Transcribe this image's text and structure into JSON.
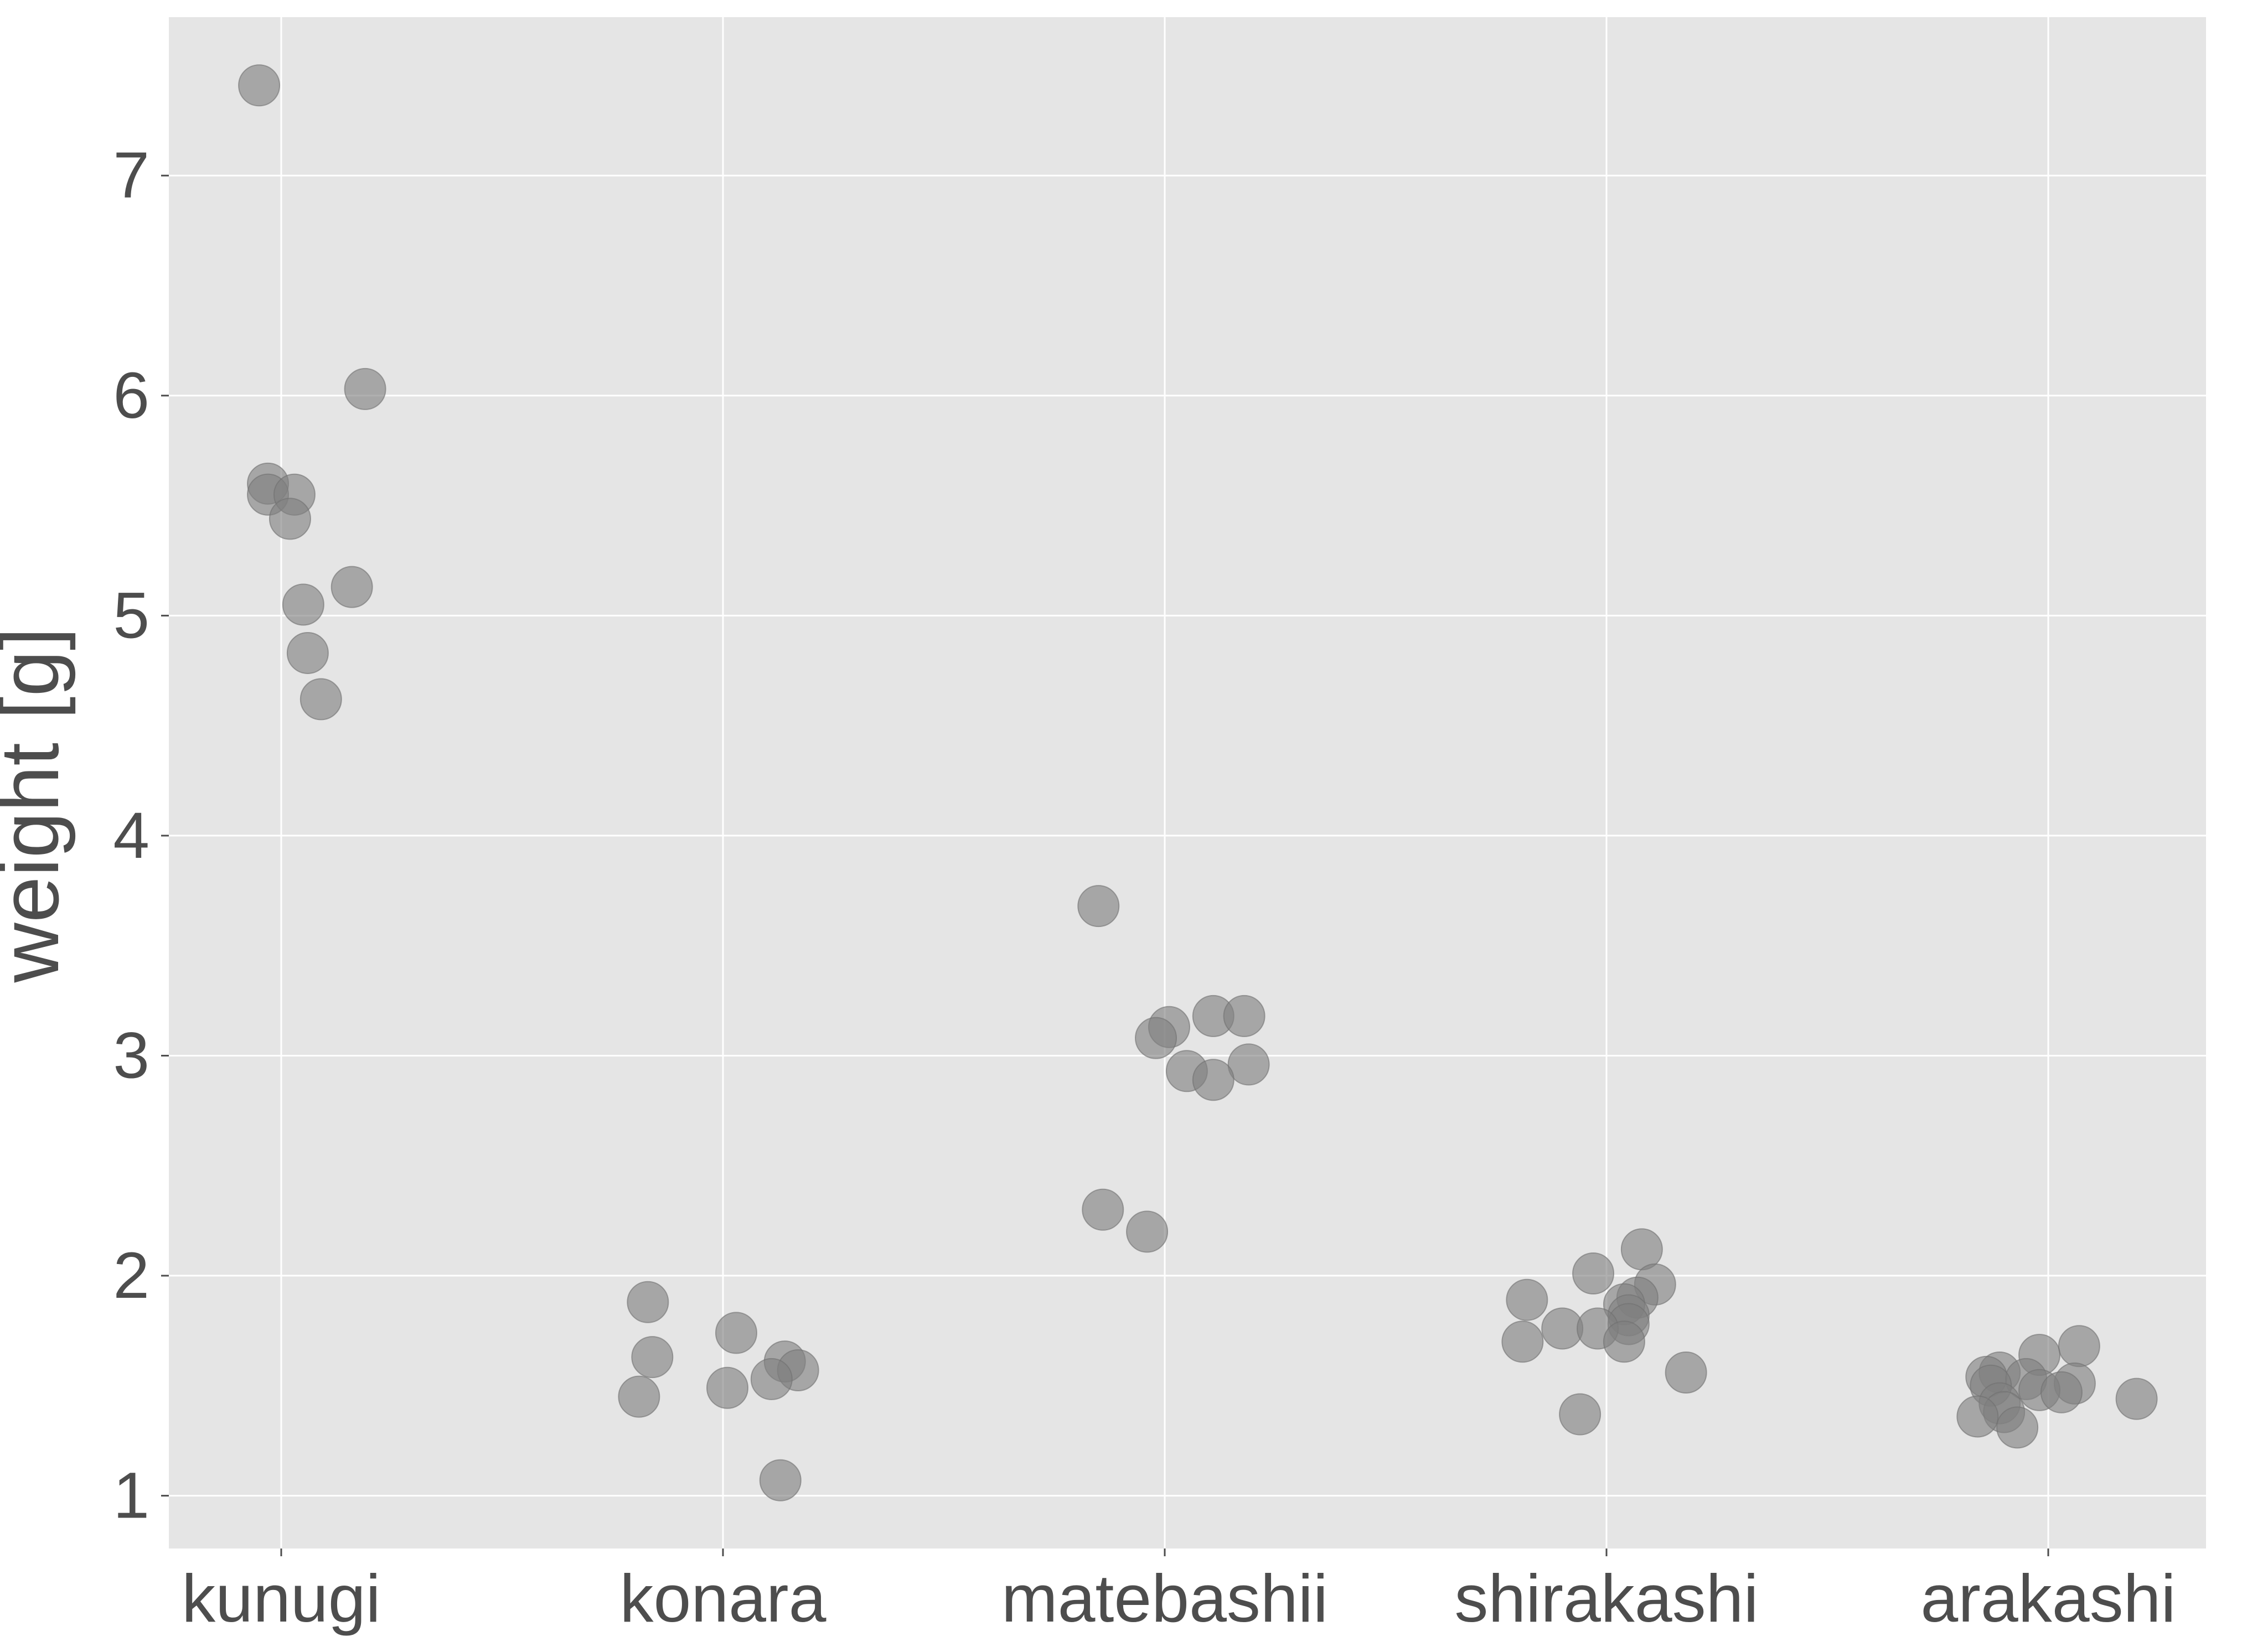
{
  "chart_data": {
    "type": "scatter",
    "title": "",
    "xlabel": "",
    "ylabel": "weight [g]",
    "categories": [
      "kunugi",
      "konara",
      "matebashii",
      "shirakashi",
      "arakashi"
    ],
    "yticks": [
      1,
      2,
      3,
      4,
      5,
      6,
      7
    ],
    "ylim": [
      0.76,
      7.72
    ],
    "grid": true,
    "legend": "none",
    "colors": {
      "panel": "#e5e5e5",
      "grid": "#ffffff",
      "point_fill": "#7f7f7f",
      "point_stroke": "#6f6f6f",
      "text": "#4d4d4d",
      "tick": "#4d4d4d"
    },
    "points": [
      {
        "category": "kunugi",
        "jitter": -0.05,
        "y": 7.41
      },
      {
        "category": "kunugi",
        "jitter": 0.19,
        "y": 6.03
      },
      {
        "category": "kunugi",
        "jitter": -0.03,
        "y": 5.6
      },
      {
        "category": "kunugi",
        "jitter": -0.03,
        "y": 5.55
      },
      {
        "category": "kunugi",
        "jitter": 0.03,
        "y": 5.55
      },
      {
        "category": "kunugi",
        "jitter": 0.02,
        "y": 5.44
      },
      {
        "category": "kunugi",
        "jitter": 0.16,
        "y": 5.13
      },
      {
        "category": "kunugi",
        "jitter": 0.05,
        "y": 5.05
      },
      {
        "category": "kunugi",
        "jitter": 0.06,
        "y": 4.83
      },
      {
        "category": "kunugi",
        "jitter": 0.09,
        "y": 4.62
      },
      {
        "category": "konara",
        "jitter": -0.17,
        "y": 1.88
      },
      {
        "category": "konara",
        "jitter": 0.03,
        "y": 1.74
      },
      {
        "category": "konara",
        "jitter": -0.16,
        "y": 1.63
      },
      {
        "category": "konara",
        "jitter": 0.14,
        "y": 1.61
      },
      {
        "category": "konara",
        "jitter": 0.17,
        "y": 1.57
      },
      {
        "category": "konara",
        "jitter": 0.11,
        "y": 1.53
      },
      {
        "category": "konara",
        "jitter": 0.01,
        "y": 1.49
      },
      {
        "category": "konara",
        "jitter": -0.19,
        "y": 1.45
      },
      {
        "category": "konara",
        "jitter": 0.13,
        "y": 1.07
      },
      {
        "category": "matebashii",
        "jitter": -0.15,
        "y": 3.68
      },
      {
        "category": "matebashii",
        "jitter": 0.11,
        "y": 3.18
      },
      {
        "category": "matebashii",
        "jitter": 0.18,
        "y": 3.18
      },
      {
        "category": "matebashii",
        "jitter": 0.01,
        "y": 3.13
      },
      {
        "category": "matebashii",
        "jitter": -0.02,
        "y": 3.08
      },
      {
        "category": "matebashii",
        "jitter": 0.19,
        "y": 2.96
      },
      {
        "category": "matebashii",
        "jitter": 0.05,
        "y": 2.93
      },
      {
        "category": "matebashii",
        "jitter": 0.11,
        "y": 2.89
      },
      {
        "category": "matebashii",
        "jitter": -0.14,
        "y": 2.3
      },
      {
        "category": "matebashii",
        "jitter": -0.04,
        "y": 2.2
      },
      {
        "category": "shirakashi",
        "jitter": 0.08,
        "y": 2.12
      },
      {
        "category": "shirakashi",
        "jitter": -0.03,
        "y": 2.01
      },
      {
        "category": "shirakashi",
        "jitter": 0.11,
        "y": 1.96
      },
      {
        "category": "shirakashi",
        "jitter": 0.07,
        "y": 1.9
      },
      {
        "category": "shirakashi",
        "jitter": -0.18,
        "y": 1.89
      },
      {
        "category": "shirakashi",
        "jitter": 0.04,
        "y": 1.87
      },
      {
        "category": "shirakashi",
        "jitter": 0.05,
        "y": 1.82
      },
      {
        "category": "shirakashi",
        "jitter": 0.05,
        "y": 1.78
      },
      {
        "category": "shirakashi",
        "jitter": -0.1,
        "y": 1.76
      },
      {
        "category": "shirakashi",
        "jitter": -0.02,
        "y": 1.76
      },
      {
        "category": "shirakashi",
        "jitter": -0.19,
        "y": 1.7
      },
      {
        "category": "shirakashi",
        "jitter": 0.04,
        "y": 1.7
      },
      {
        "category": "shirakashi",
        "jitter": 0.18,
        "y": 1.56
      },
      {
        "category": "shirakashi",
        "jitter": -0.06,
        "y": 1.37
      },
      {
        "category": "arakashi",
        "jitter": 0.07,
        "y": 1.68
      },
      {
        "category": "arakashi",
        "jitter": -0.02,
        "y": 1.64
      },
      {
        "category": "arakashi",
        "jitter": -0.11,
        "y": 1.56
      },
      {
        "category": "arakashi",
        "jitter": -0.14,
        "y": 1.54
      },
      {
        "category": "arakashi",
        "jitter": -0.05,
        "y": 1.53
      },
      {
        "category": "arakashi",
        "jitter": 0.06,
        "y": 1.51
      },
      {
        "category": "arakashi",
        "jitter": -0.13,
        "y": 1.5
      },
      {
        "category": "arakashi",
        "jitter": -0.02,
        "y": 1.48
      },
      {
        "category": "arakashi",
        "jitter": 0.03,
        "y": 1.47
      },
      {
        "category": "arakashi",
        "jitter": 0.2,
        "y": 1.44
      },
      {
        "category": "arakashi",
        "jitter": -0.11,
        "y": 1.42
      },
      {
        "category": "arakashi",
        "jitter": -0.1,
        "y": 1.38
      },
      {
        "category": "arakashi",
        "jitter": -0.16,
        "y": 1.36
      },
      {
        "category": "arakashi",
        "jitter": -0.07,
        "y": 1.31
      }
    ]
  }
}
